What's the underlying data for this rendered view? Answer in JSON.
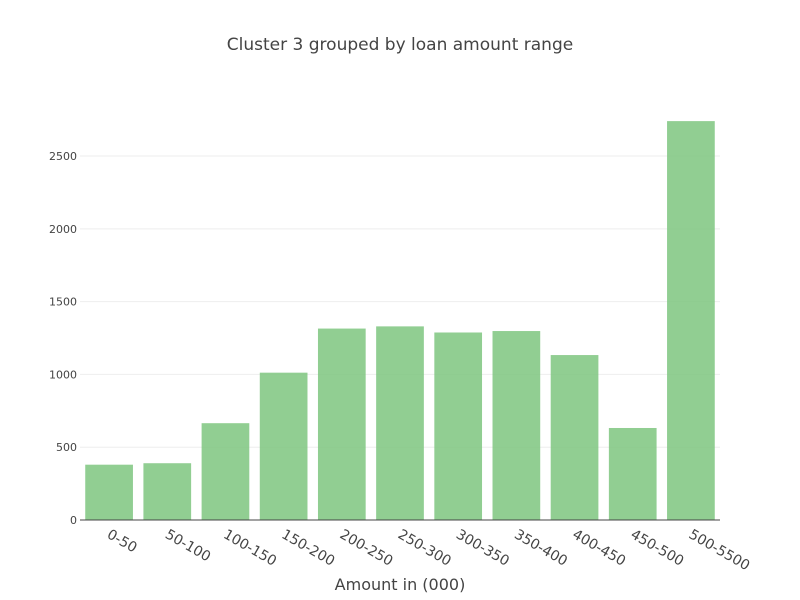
{
  "chart_data": {
    "type": "bar",
    "title": "Cluster 3  grouped by loan amount range",
    "xlabel": "Amount in (000)",
    "ylabel": "",
    "categories": [
      "0-50",
      "50-100",
      "100-150",
      "150-200",
      "200-250",
      "250-300",
      "300-350",
      "350-400",
      "400-450",
      "450-500",
      "500-5500"
    ],
    "values": [
      380,
      390,
      665,
      1012,
      1315,
      1330,
      1288,
      1298,
      1133,
      632,
      2740
    ],
    "ylim": [
      0,
      2885
    ],
    "yticks": [
      0,
      500,
      1000,
      1500,
      2000,
      2500
    ],
    "bar_color": "#7ec67f",
    "bar_opacity": 0.85,
    "grid": true,
    "legend": false
  }
}
